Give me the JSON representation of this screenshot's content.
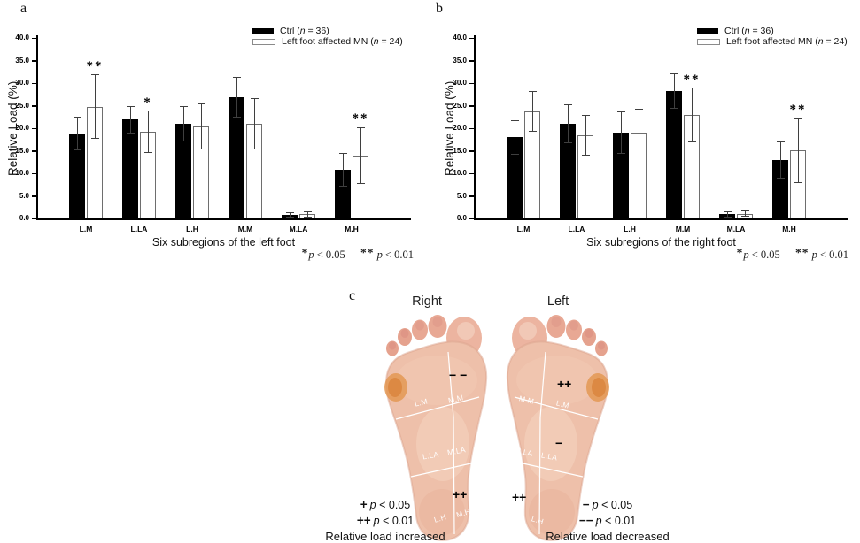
{
  "chart_data": [
    {
      "type": "bar",
      "panel": "a",
      "title": "",
      "xlabel": "Six subregions of the left foot",
      "ylabel": "Relative Load (%)",
      "ylim": [
        0,
        40
      ],
      "ytick_step": 5,
      "ytick_decimals": 1,
      "categories": [
        "L.M",
        "L.LA",
        "L.H",
        "M.M",
        "M.LA",
        "M.H"
      ],
      "series": [
        {
          "name": "Ctrl (n = 36)",
          "label_pre": "Ctrl (",
          "label_var": "n",
          "label_post": " = 36)",
          "fill": "#000000",
          "border": "#000000",
          "values": [
            18.8,
            21.9,
            21.0,
            26.8,
            0.8,
            10.8
          ],
          "errors": [
            3.6,
            2.9,
            3.8,
            4.4,
            0.5,
            3.6
          ]
        },
        {
          "name": "Left foot affected MN (n = 24)",
          "label_pre": "Left foot affected MN (",
          "label_var": "n",
          "label_post": " = 24)",
          "fill": "#ffffff",
          "border": "#6e6e6e",
          "values": [
            24.8,
            19.2,
            20.4,
            20.9,
            0.9,
            13.9
          ],
          "errors": [
            7.0,
            4.6,
            5.0,
            5.6,
            0.6,
            6.2
          ]
        }
      ],
      "significance": [
        {
          "category": "L.M",
          "series": 1,
          "text": "**"
        },
        {
          "category": "L.LA",
          "series": 1,
          "text": "*"
        },
        {
          "category": "M.H",
          "series": 1,
          "text": "**"
        }
      ],
      "footnote": {
        "sym1": "*",
        "p": "p",
        "rest1": " < 0.05",
        "sym2": "**",
        "rest2": " < 0.01"
      }
    },
    {
      "type": "bar",
      "panel": "b",
      "title": "",
      "xlabel": "Six subregions of the right foot",
      "ylabel": "Relative Load (%)",
      "ylim": [
        0,
        40
      ],
      "ytick_step": 5,
      "ytick_decimals": 1,
      "categories": [
        "L.M",
        "L.LA",
        "L.H",
        "M.M",
        "M.LA",
        "M.H"
      ],
      "series": [
        {
          "name": "Ctrl (n = 36)",
          "label_pre": "Ctrl (",
          "label_var": "n",
          "label_post": " = 36)",
          "fill": "#000000",
          "border": "#000000",
          "values": [
            18.0,
            21.0,
            19.0,
            28.2,
            0.9,
            12.9
          ],
          "errors": [
            3.7,
            4.2,
            4.6,
            3.8,
            0.6,
            4.0
          ]
        },
        {
          "name": "Left foot affected MN (n = 24)",
          "label_pre": "Left foot affected MN (",
          "label_var": "n",
          "label_post": " = 24)",
          "fill": "#ffffff",
          "border": "#6e6e6e",
          "values": [
            23.7,
            18.4,
            19.0,
            22.9,
            1.0,
            15.1
          ],
          "errors": [
            4.4,
            4.4,
            5.3,
            6.0,
            0.6,
            7.1
          ]
        }
      ],
      "significance": [
        {
          "category": "M.M",
          "series": 1,
          "text": "**"
        },
        {
          "category": "M.H",
          "series": 1,
          "text": "**"
        }
      ],
      "footnote": {
        "sym1": "*",
        "p": "p",
        "rest1": " < 0.05",
        "sym2": "**",
        "rest2": " < 0.01"
      }
    }
  ],
  "panels": {
    "a": {
      "label": "a"
    },
    "b": {
      "label": "b"
    },
    "c": {
      "label": "c",
      "right_foot": {
        "title": "Right",
        "label_lm": "L.M",
        "label_mm": "M.M",
        "label_lla": "L.LA",
        "label_mla": "M.LA",
        "label_lh": "L.H",
        "label_mh": "M.H",
        "mark_mm": "− −",
        "mark_mh": "++"
      },
      "left_foot": {
        "title": "Left",
        "label_lm": "L.M",
        "label_mm": "M.M",
        "label_lla": "L.LA",
        "label_mla": "M.LA",
        "label_lh": "L.H",
        "label_mh": "M.H",
        "mark_lm": "++",
        "mark_lla": "−",
        "mark_mh": "++"
      },
      "legend_increase": {
        "sym1": "+",
        "sym2": "++",
        "p": "p",
        "rest1": " < 0.05",
        "rest2": " < 0.01",
        "caption": "Relative load increased"
      },
      "legend_decrease": {
        "sym1": "−",
        "sym2": "−−",
        "p": "p",
        "rest1": " < 0.05",
        "rest2": " < 0.01",
        "caption": "Relative load decreased"
      }
    }
  },
  "colors": {
    "bar_ctrl": "#000000",
    "bar_mn": "#ffffff",
    "error_bar": "#3f3f3f",
    "skin": "#eec0aa",
    "callus_orange": "#e2954d",
    "divider_line": "#ffffff"
  }
}
